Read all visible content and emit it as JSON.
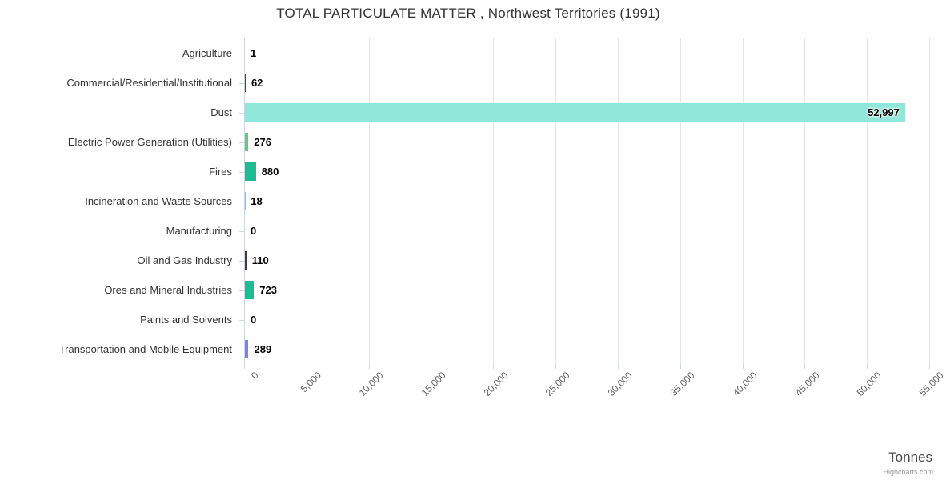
{
  "credits_label": "Highcharts.com",
  "chart_data": {
    "type": "bar",
    "title": "TOTAL PARTICULATE MATTER , Northwest Territories (1991)",
    "xlabel": "Tonnes",
    "ylabel": "",
    "categories": [
      "Agriculture",
      "Commercial/Residential/Institutional",
      "Dust",
      "Electric Power Generation (Utilities)",
      "Fires",
      "Incineration and Waste Sources",
      "Manufacturing",
      "Oil and Gas Industry",
      "Ores and Mineral Industries",
      "Paints and Solvents",
      "Transportation and Mobile Equipment"
    ],
    "values": [
      1,
      62,
      52997,
      276,
      880,
      18,
      0,
      110,
      723,
      0,
      289
    ],
    "value_labels": [
      "1",
      "62",
      "52,997",
      "276",
      "880",
      "18",
      "0",
      "110",
      "723",
      "0",
      "289"
    ],
    "bar_colors": [
      "#7cb5ec",
      "#434348",
      "#90e6d8",
      "#5fce70",
      "#1fbb92",
      "#f7a35c",
      "#8085e9",
      "#3c3c44",
      "#1fbb92",
      "#e4d354",
      "#7e85d8"
    ],
    "xlim": [
      0,
      55000
    ],
    "tick_interval": 5000,
    "tick_labels": [
      "0",
      "5,000",
      "10,000",
      "15,000",
      "20,000",
      "25,000",
      "30,000",
      "35,000",
      "40,000",
      "45,000",
      "50,000",
      "55,000"
    ],
    "tick_label_rotation": -45,
    "grid": true,
    "legend": false
  },
  "style_colors": {
    "grid": "#e6e6e6",
    "axis": "#ccd6eb",
    "background": "#ffffff",
    "title_text": "#333333",
    "category_text": "#333333",
    "value_text": "#000000",
    "tick_text": "#606060",
    "axis_title_text": "#4d4d4d",
    "credits_text": "#999999"
  }
}
